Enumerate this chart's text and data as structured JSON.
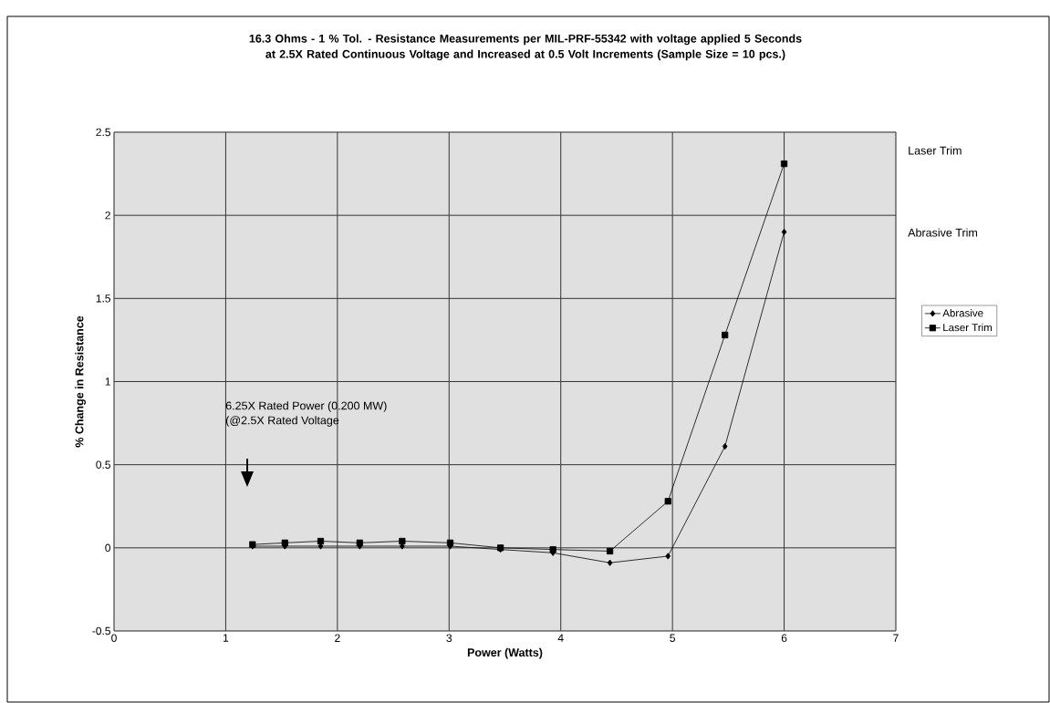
{
  "chart_data": {
    "type": "line",
    "title": "16.3 Ohms - 1 % Tol. - Resistance Measurements per MIL-PRF-55342 with voltage applied 5 Seconds at 2.5X Rated Continuous Voltage and Increased at  0.5 Volt Increments (Sample Size = 10 pcs.)",
    "xlabel": "Power (Watts)",
    "ylabel": "% Change in Resistance",
    "x": [
      1.24,
      1.53,
      1.85,
      2.2,
      2.58,
      3.01,
      3.46,
      3.93,
      4.44,
      4.96,
      5.47,
      6.0
    ],
    "series": [
      {
        "name": "Abrasive",
        "color": "#000000",
        "marker": "diamond",
        "values": [
          0.01,
          0.01,
          0.01,
          0.01,
          0.01,
          0.01,
          -0.01,
          -0.03,
          -0.09,
          -0.05,
          0.61,
          1.9
        ]
      },
      {
        "name": "Laser Trim",
        "color": "#000000",
        "marker": "square",
        "values": [
          0.02,
          0.03,
          0.04,
          0.03,
          0.04,
          0.03,
          0.0,
          -0.01,
          -0.02,
          0.28,
          1.28,
          2.31
        ]
      }
    ],
    "xlim": [
      0,
      7
    ],
    "ylim": [
      -0.5,
      2.5
    ],
    "xticks": [
      0,
      1,
      2,
      3,
      4,
      5,
      6,
      7
    ],
    "yticks": [
      -0.5,
      0,
      0.5,
      1,
      1.5,
      2,
      2.5
    ],
    "grid": true,
    "legend": "right",
    "line_style": "solid",
    "annotations": [
      "6.25X Rated Power (0.200 MW)",
      "(@2.5X Rated Voltage",
      "Laser Trim",
      "Abrasive Trim"
    ]
  }
}
